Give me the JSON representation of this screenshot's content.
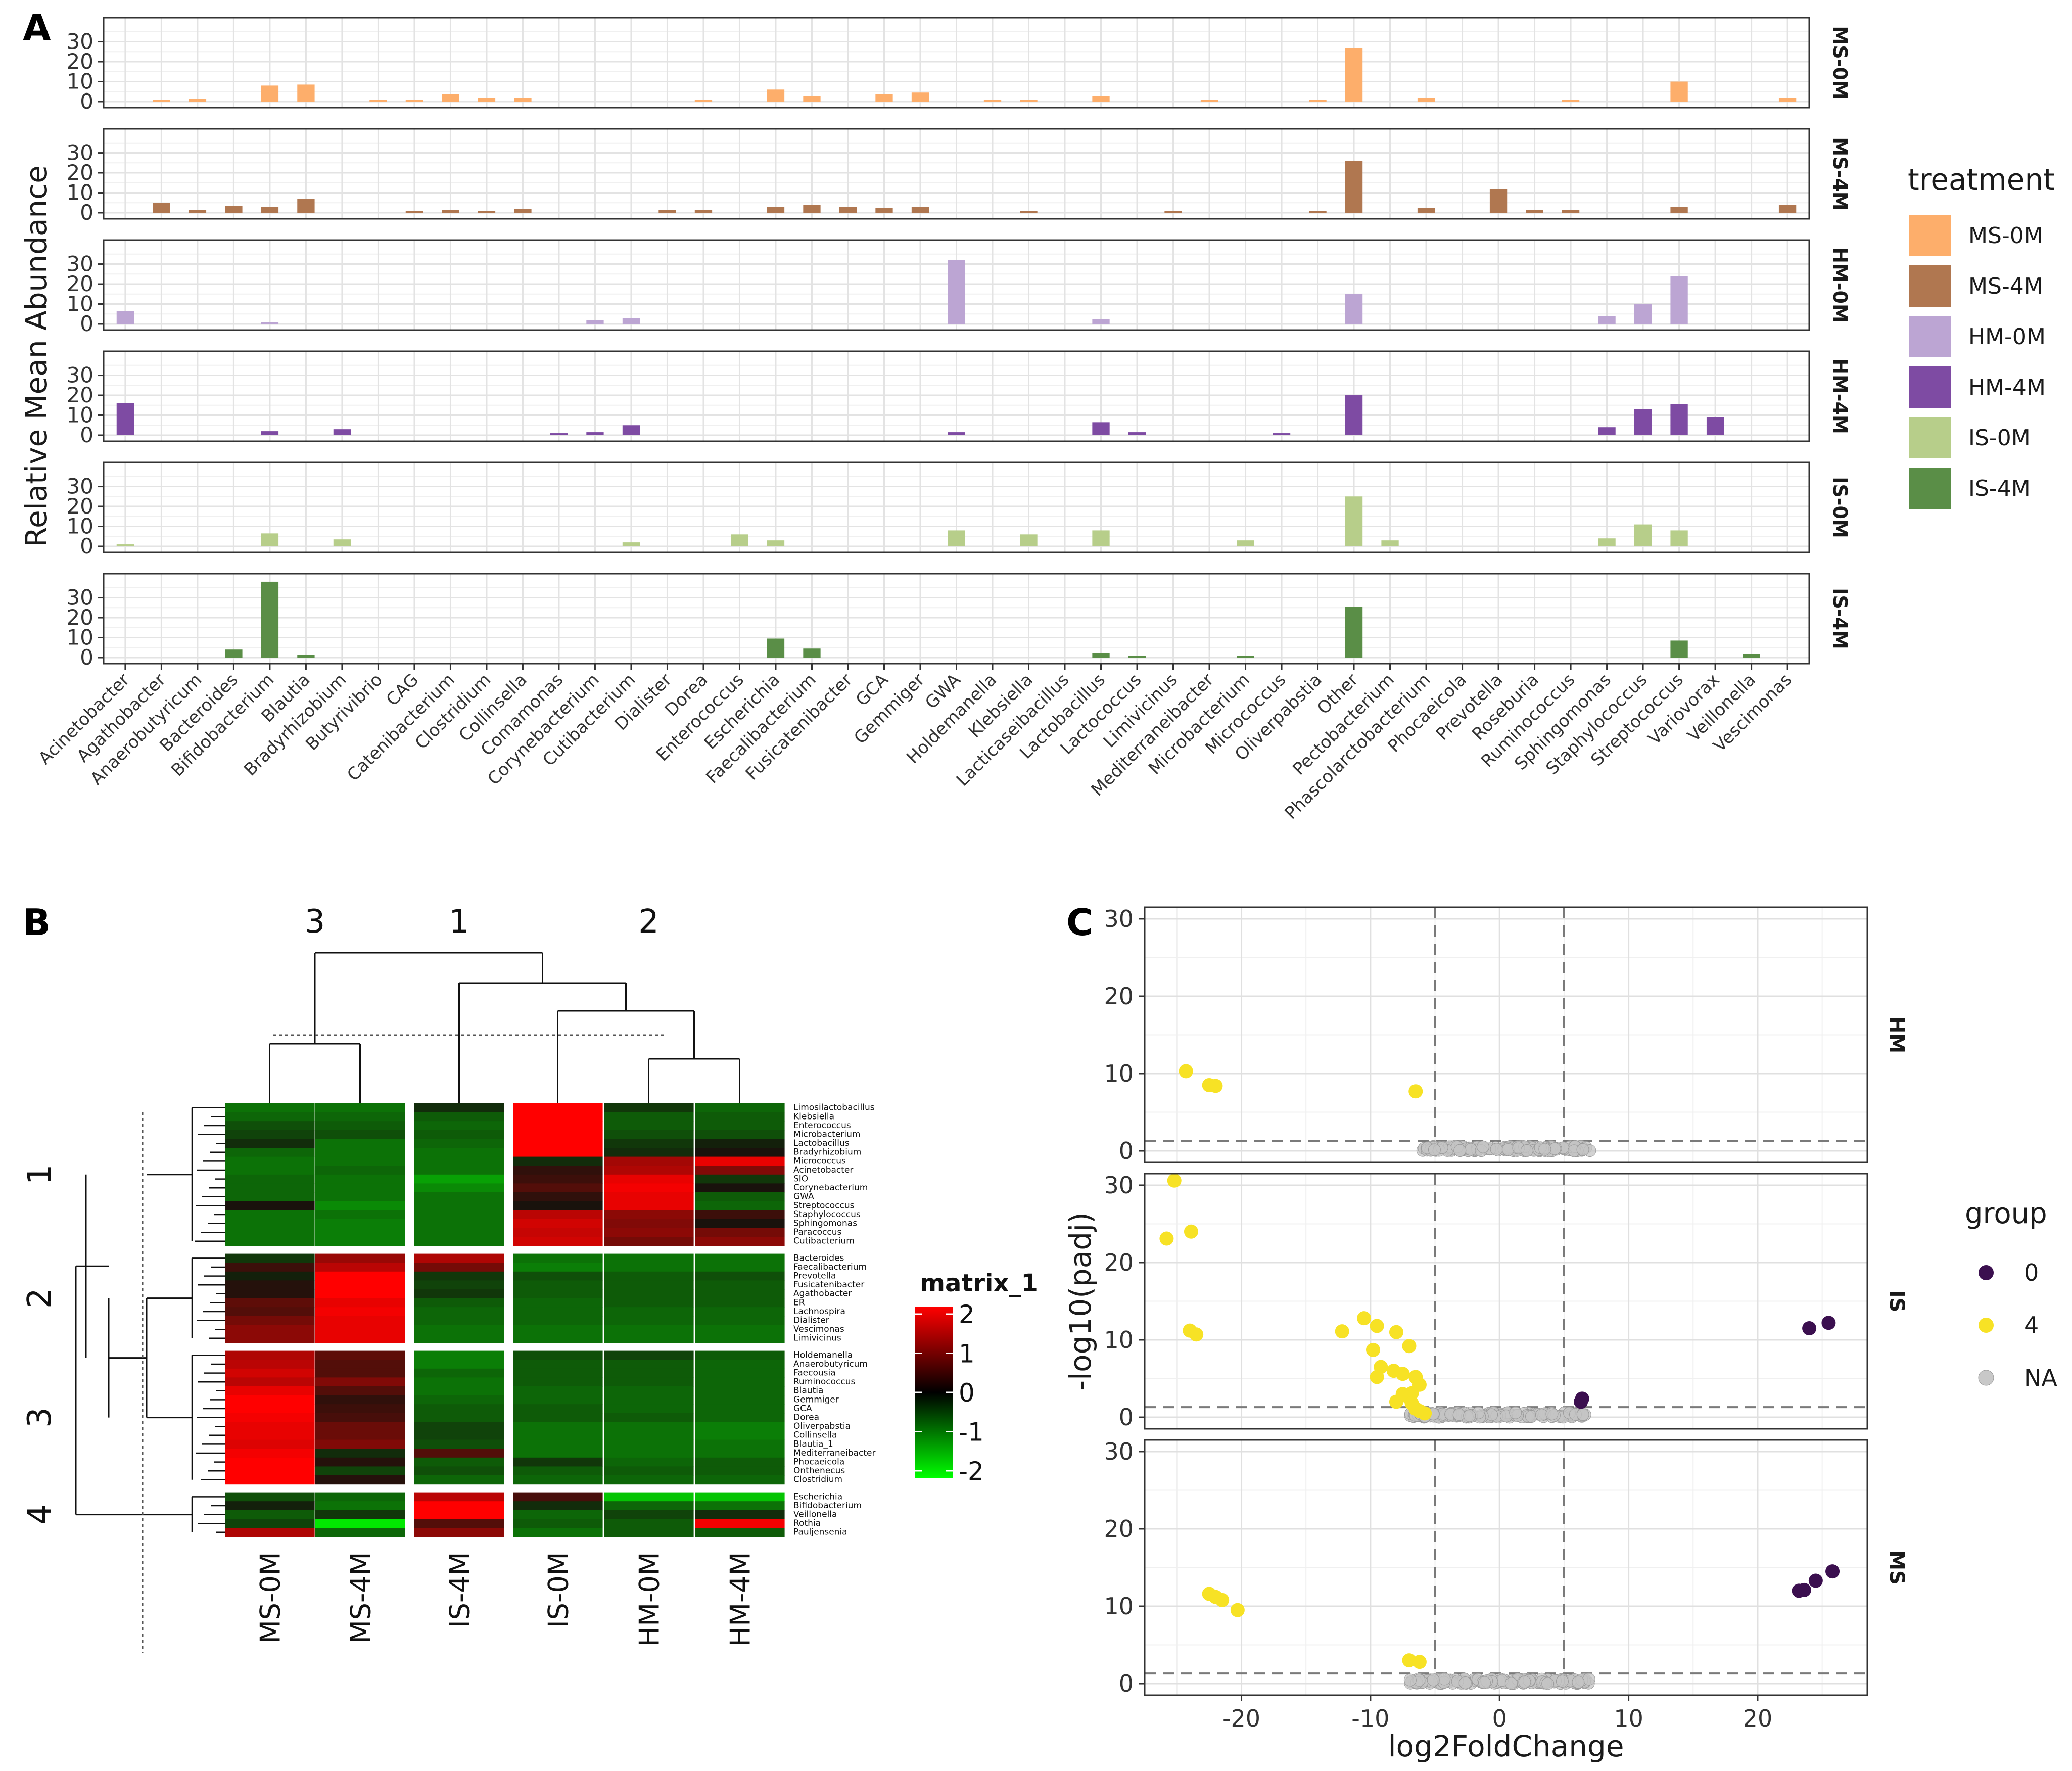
{
  "panels": {
    "a": "A",
    "b": "B",
    "c": "C"
  },
  "panelA": {
    "ylabel": "Relative Mean Abundance",
    "yticks": [
      0,
      10,
      20,
      30
    ],
    "ymax": 39,
    "legend_title": "treatment",
    "genera": [
      "Acinetobacter",
      "Agathobacter",
      "Anaerobutyricum",
      "Bacteroides",
      "Bifidobacterium",
      "Blautia",
      "Bradyrhizobium",
      "Butyrivibrio",
      "CAG",
      "Catenibacterium",
      "Clostridium",
      "Collinsella",
      "Comamonas",
      "Corynebacterium",
      "Cutibacterium",
      "Dialister",
      "Dorea",
      "Enterococcus",
      "Escherichia",
      "Faecalibacterium",
      "Fusicatenibacter",
      "GCA",
      "Gemmiger",
      "GWA",
      "Holdemanella",
      "Klebsiella",
      "Lacticaseibacillus",
      "Lactobacillus",
      "Lactococcus",
      "Limivicinus",
      "Mediterraneibacter",
      "Microbacterium",
      "Micrococcus",
      "Oliverpabstia",
      "Other",
      "Pectobacterium",
      "Phascolarctobacterium",
      "Phocaeicola",
      "Prevotella",
      "Roseburia",
      "Ruminococcus",
      "Sphingomonas",
      "Staphylococcus",
      "Streptococcus",
      "Variovorax",
      "Veillonella",
      "Vescimonas"
    ],
    "treatments": [
      {
        "name": "MS-0M",
        "color": "#FDAE6B",
        "values": [
          0,
          1,
          1.5,
          0,
          8,
          8.5,
          0,
          1,
          1,
          4,
          2,
          2,
          0,
          0,
          0,
          0,
          1,
          0,
          6,
          3,
          0,
          4,
          4.5,
          0,
          1,
          1,
          0,
          3,
          0,
          0,
          1,
          0,
          0,
          1,
          27,
          0,
          2,
          0,
          0,
          0,
          1,
          0,
          0,
          10,
          0,
          0,
          2
        ]
      },
      {
        "name": "MS-4M",
        "color": "#B07750",
        "values": [
          0,
          5,
          1.5,
          3.5,
          3,
          7,
          0,
          0,
          1,
          1.5,
          1,
          2,
          0,
          0,
          0,
          1.5,
          1.5,
          0,
          3,
          4,
          3,
          2.5,
          3,
          0,
          0,
          1,
          0,
          0,
          0,
          1,
          0,
          0,
          0,
          1,
          26,
          0,
          2.5,
          0,
          12,
          1.5,
          1.5,
          0,
          0,
          3,
          0,
          0,
          4
        ]
      },
      {
        "name": "HM-0M",
        "color": "#BCA5D3",
        "values": [
          6.5,
          0,
          0,
          0,
          1,
          0,
          0,
          0,
          0,
          0,
          0,
          0,
          0,
          2,
          3,
          0,
          0,
          0,
          0,
          0,
          0,
          0,
          0,
          32,
          0,
          0,
          0,
          2.5,
          0,
          0,
          0,
          0,
          0,
          0,
          15,
          0,
          0,
          0,
          0,
          0,
          0,
          4,
          10,
          24,
          0,
          0,
          0
        ]
      },
      {
        "name": "HM-4M",
        "color": "#7E4BA3",
        "values": [
          16,
          0,
          0,
          0,
          2,
          0,
          3,
          0,
          0,
          0,
          0,
          0,
          1,
          1.5,
          5,
          0,
          0,
          0,
          0,
          0,
          0,
          0,
          0,
          1.5,
          0,
          0,
          0,
          6.5,
          1.5,
          0,
          0,
          0,
          1,
          0,
          20,
          0,
          0,
          0,
          0,
          0,
          0,
          4,
          13,
          15.5,
          9,
          0,
          0
        ]
      },
      {
        "name": "IS-0M",
        "color": "#B7CE8A",
        "values": [
          1,
          0,
          0,
          0,
          6.5,
          0,
          3.5,
          0,
          0,
          0,
          0,
          0,
          0,
          0,
          2,
          0,
          0,
          6,
          3,
          0,
          0,
          0,
          0,
          8,
          0,
          6,
          0,
          8,
          0,
          0,
          0,
          3,
          0,
          0,
          25,
          3,
          0,
          0,
          0,
          0,
          0,
          4,
          11,
          8,
          0,
          0,
          0
        ]
      },
      {
        "name": "IS-4M",
        "color": "#5A8E47",
        "values": [
          0,
          0,
          0,
          4,
          38,
          1.5,
          0,
          0,
          0,
          0,
          0,
          0,
          0,
          0,
          0,
          0,
          0,
          0,
          9.5,
          4.5,
          0,
          0,
          0,
          0,
          0,
          0,
          0,
          2.5,
          1,
          0,
          0,
          1,
          0,
          0,
          25.5,
          0,
          0,
          0,
          0,
          0,
          0,
          0,
          0,
          8.5,
          0,
          2,
          0
        ]
      }
    ]
  },
  "panelB": {
    "col_labels": [
      "MS-0M",
      "MS-4M",
      "IS-4M",
      "IS-0M",
      "HM-0M",
      "HM-4M"
    ],
    "col_cluster_labels": [
      "3",
      "1",
      "2"
    ],
    "row_cluster_labels": [
      "1",
      "2",
      "3",
      "4"
    ],
    "legend_title": "matrix_1",
    "legend_ticks": [
      "2",
      "1",
      "0",
      "-1",
      "-2"
    ],
    "rows": [
      {
        "cluster": 1,
        "names": [
          "Limosilactobacillus",
          "Klebsiella",
          "Enterococcus",
          "Microbacterium",
          "Lactobacillus",
          "Bradyrhizobium",
          "Micrococcus",
          "Acinetobacter",
          "SIO",
          "Corynebacterium",
          "GWA",
          "Streptococcus",
          "Staphylococcus",
          "Sphingomonas",
          "Paracoccus",
          "Cutibacterium"
        ],
        "values": [
          [
            -0.8,
            -0.8,
            -0.2,
            2.0,
            -0.3,
            -0.7
          ],
          [
            -0.7,
            -0.7,
            -0.6,
            2.0,
            -0.6,
            -0.6
          ],
          [
            -0.5,
            -0.6,
            -0.7,
            2.0,
            -0.6,
            -0.6
          ],
          [
            -0.4,
            -0.5,
            -0.6,
            2.0,
            -0.5,
            -0.5
          ],
          [
            -0.2,
            -0.8,
            -0.7,
            2.0,
            -0.3,
            -0.1
          ],
          [
            -0.7,
            -0.8,
            -0.8,
            2.0,
            -0.2,
            0.0
          ],
          [
            -0.8,
            -0.8,
            -0.8,
            -0.2,
            1.2,
            1.8
          ],
          [
            -0.8,
            -0.7,
            -0.8,
            0.2,
            1.3,
            0.9
          ],
          [
            -0.7,
            -0.8,
            -1.2,
            0.3,
            1.8,
            -0.3
          ],
          [
            -0.7,
            -0.8,
            -1.0,
            0.5,
            1.9,
            0.0
          ],
          [
            -0.7,
            -0.8,
            -0.8,
            0.2,
            1.8,
            -0.6
          ],
          [
            0.0,
            -1.0,
            -0.8,
            0.0,
            1.8,
            -0.7
          ],
          [
            -0.8,
            -0.8,
            -0.8,
            1.4,
            1.0,
            0.3
          ],
          [
            -0.8,
            -0.9,
            -0.8,
            1.6,
            0.9,
            0.0
          ],
          [
            -0.8,
            -0.9,
            -0.8,
            1.5,
            1.0,
            0.8
          ],
          [
            -0.8,
            -0.9,
            -0.8,
            1.6,
            0.8,
            1.0
          ]
        ]
      },
      {
        "cluster": 2,
        "names": [
          "Bacteroides",
          "Faecalibacterium",
          "Prevotella",
          "Fusicatenibacter",
          "Agathobacter",
          "ER",
          "Lachnospira",
          "Dialister",
          "Vescimonas",
          "Limivicinus"
        ],
        "values": [
          [
            -0.3,
            1.1,
            1.3,
            -0.8,
            -0.8,
            -0.8
          ],
          [
            0.3,
            1.4,
            0.8,
            -0.9,
            -0.8,
            -0.8
          ],
          [
            -0.1,
            2.0,
            -0.3,
            -0.5,
            -0.6,
            -0.5
          ],
          [
            0.1,
            2.0,
            -0.4,
            -0.6,
            -0.6,
            -0.6
          ],
          [
            0.1,
            2.0,
            -0.3,
            -0.6,
            -0.6,
            -0.6
          ],
          [
            0.6,
            1.8,
            -0.6,
            -0.7,
            -0.6,
            -0.6
          ],
          [
            0.5,
            1.9,
            -0.7,
            -0.7,
            -0.7,
            -0.7
          ],
          [
            0.8,
            1.8,
            -0.7,
            -0.7,
            -0.7,
            -0.7
          ],
          [
            1.0,
            1.8,
            -0.8,
            -0.8,
            -0.8,
            -0.8
          ],
          [
            1.0,
            1.8,
            -0.8,
            -0.8,
            -0.8,
            -0.8
          ]
        ]
      },
      {
        "cluster": 3,
        "names": [
          "Holdemanella",
          "Anaerobutyricum",
          "Faecousia",
          "Ruminococcus",
          "Blautia",
          "Gemmiger",
          "GCA",
          "Dorea",
          "Oliverpabstia",
          "Collinsella",
          "Blautia_1",
          "Mediterraneibacter",
          "Phocaeicola",
          "Onthenecus",
          "Clostridium"
        ],
        "values": [
          [
            1.3,
            0.6,
            -0.9,
            -0.5,
            -0.4,
            -0.6
          ],
          [
            1.4,
            0.5,
            -0.9,
            -0.6,
            -0.6,
            -0.7
          ],
          [
            1.6,
            0.5,
            -0.7,
            -0.6,
            -0.6,
            -0.7
          ],
          [
            1.4,
            0.9,
            -0.8,
            -0.6,
            -0.6,
            -0.7
          ],
          [
            1.8,
            0.5,
            -0.8,
            -0.7,
            -0.7,
            -0.7
          ],
          [
            2.0,
            0.2,
            -0.7,
            -0.7,
            -0.7,
            -0.7
          ],
          [
            2.0,
            0.3,
            -0.6,
            -0.6,
            -0.7,
            -0.7
          ],
          [
            1.9,
            0.4,
            -0.6,
            -0.6,
            -0.6,
            -0.7
          ],
          [
            1.8,
            0.7,
            -0.4,
            -0.8,
            -0.8,
            -0.9
          ],
          [
            1.8,
            0.7,
            -0.4,
            -0.8,
            -0.8,
            -0.9
          ],
          [
            1.7,
            0.9,
            -0.5,
            -0.8,
            -0.8,
            -0.8
          ],
          [
            1.9,
            -0.2,
            0.5,
            -0.8,
            -0.8,
            -0.8
          ],
          [
            2.0,
            0.1,
            -0.6,
            -0.3,
            -0.7,
            -0.6
          ],
          [
            2.0,
            -0.4,
            -0.5,
            -0.6,
            -0.6,
            -0.6
          ],
          [
            2.0,
            0.1,
            -0.7,
            -0.7,
            -0.7,
            -0.7
          ]
        ]
      },
      {
        "cluster": 4,
        "names": [
          "Escherichia",
          "Bifidobacterium",
          "Veillonella",
          "Rothia",
          "Pauljensenia"
        ],
        "values": [
          [
            -0.5,
            -0.7,
            1.4,
            0.4,
            -1.5,
            -1.5
          ],
          [
            -0.1,
            -0.8,
            2.0,
            -0.2,
            -0.7,
            -0.8
          ],
          [
            -0.6,
            -0.3,
            2.0,
            -0.7,
            -0.4,
            -0.2
          ],
          [
            -0.4,
            -1.8,
            0.5,
            -0.6,
            -0.6,
            1.9
          ],
          [
            1.3,
            -0.7,
            1.0,
            -0.8,
            -0.6,
            -0.6
          ]
        ]
      }
    ]
  },
  "panelC": {
    "xlabel": "log2FoldChange",
    "ylabel": "-log10(padj)",
    "xticks": [
      -20,
      -10,
      0,
      10,
      20
    ],
    "yticks": [
      0,
      10,
      20,
      30
    ],
    "xlim": [
      -27.5,
      28.5
    ],
    "ylim": [
      -1.5,
      31.5
    ],
    "vlines": [
      -5,
      5
    ],
    "hline": 1.3,
    "legend_title": "group",
    "groups": [
      {
        "name": "0",
        "color": "#3B0F4F"
      },
      {
        "name": "4",
        "color": "#F7E225"
      },
      {
        "name": "NA",
        "color": "#C8C8C8"
      }
    ],
    "facets": [
      {
        "name": "HM",
        "points_4": [
          [
            -24.3,
            10.3
          ],
          [
            -22.5,
            8.5
          ],
          [
            -22.0,
            8.4
          ],
          [
            -6.5,
            7.7
          ]
        ],
        "points_0": [],
        "na_x_range": [
          -6,
          7
        ],
        "na_seed": 3
      },
      {
        "name": "IS",
        "points_4": [
          [
            -25.2,
            30.6
          ],
          [
            -25.8,
            23.1
          ],
          [
            -23.9,
            24.0
          ],
          [
            -24.0,
            11.2
          ],
          [
            -23.5,
            10.7
          ],
          [
            -12.2,
            11.1
          ],
          [
            -10.5,
            12.8
          ],
          [
            -9.5,
            11.8
          ],
          [
            -8.0,
            11.0
          ],
          [
            -7.0,
            9.2
          ],
          [
            -9.8,
            8.7
          ],
          [
            -9.2,
            6.5
          ],
          [
            -9.5,
            5.2
          ],
          [
            -8.2,
            6.0
          ],
          [
            -7.5,
            5.6
          ],
          [
            -6.5,
            5.2
          ],
          [
            -6.2,
            4.2
          ],
          [
            -6.8,
            3.1
          ],
          [
            -7.5,
            3.0
          ],
          [
            -7.0,
            2.5
          ],
          [
            -6.8,
            1.8
          ],
          [
            -6.5,
            1.1
          ],
          [
            -6.2,
            0.8
          ],
          [
            -5.8,
            0.5
          ],
          [
            -8.0,
            2.0
          ]
        ],
        "points_0": [
          [
            24.0,
            11.5
          ],
          [
            25.5,
            12.2
          ],
          [
            6.4,
            2.4
          ],
          [
            6.3,
            2.0
          ]
        ],
        "na_x_range": [
          -7,
          7
        ],
        "na_seed": 7
      },
      {
        "name": "MS",
        "points_4": [
          [
            -22.5,
            11.6
          ],
          [
            -22.0,
            11.2
          ],
          [
            -21.5,
            10.8
          ],
          [
            -20.3,
            9.5
          ],
          [
            -7.0,
            3.0
          ],
          [
            -6.2,
            2.8
          ]
        ],
        "points_0": [
          [
            23.2,
            12.0
          ],
          [
            24.5,
            13.3
          ],
          [
            25.8,
            14.5
          ],
          [
            23.6,
            12.1
          ]
        ],
        "na_x_range": [
          -7,
          7
        ],
        "na_seed": 11
      }
    ]
  }
}
